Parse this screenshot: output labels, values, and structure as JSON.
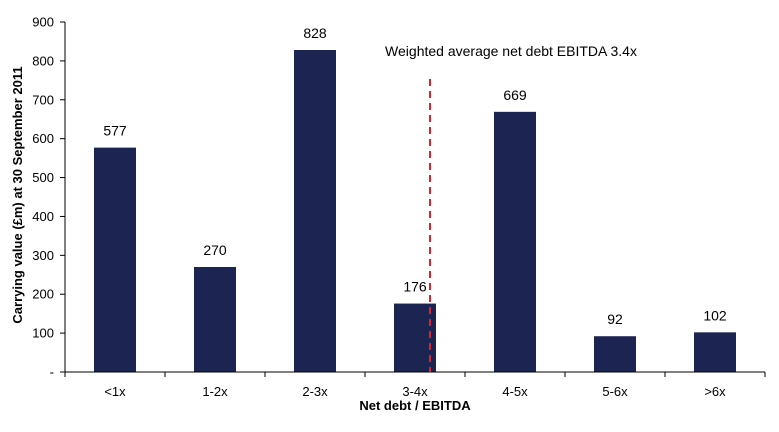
{
  "chart_data": {
    "type": "bar",
    "title": "",
    "xlabel": "Net debt / EBITDA",
    "ylabel": "Carrying value (£m) at 30 September 2011",
    "categories": [
      "<1x",
      "1-2x",
      "2-3x",
      "3-4x",
      "4-5x",
      "5-6x",
      ">6x"
    ],
    "values": [
      577,
      270,
      828,
      176,
      669,
      92,
      102
    ],
    "value_labels": [
      "577",
      "270",
      "828",
      "176",
      "669",
      "92",
      "102"
    ],
    "ylim": [
      0,
      900
    ],
    "yticks": [
      0,
      100,
      200,
      300,
      400,
      500,
      600,
      700,
      800,
      900
    ],
    "ytick_labels": [
      "-",
      "100",
      "200",
      "300",
      "400",
      "500",
      "600",
      "700",
      "800",
      "900"
    ],
    "grid": false,
    "legend": "none",
    "bar_color": "#1c2451",
    "annotation": {
      "text": "Weighted average net debt EBITDA 3.4x",
      "x_value": 3.4,
      "line_color": "#e0202a",
      "line_style": "dashed"
    }
  }
}
